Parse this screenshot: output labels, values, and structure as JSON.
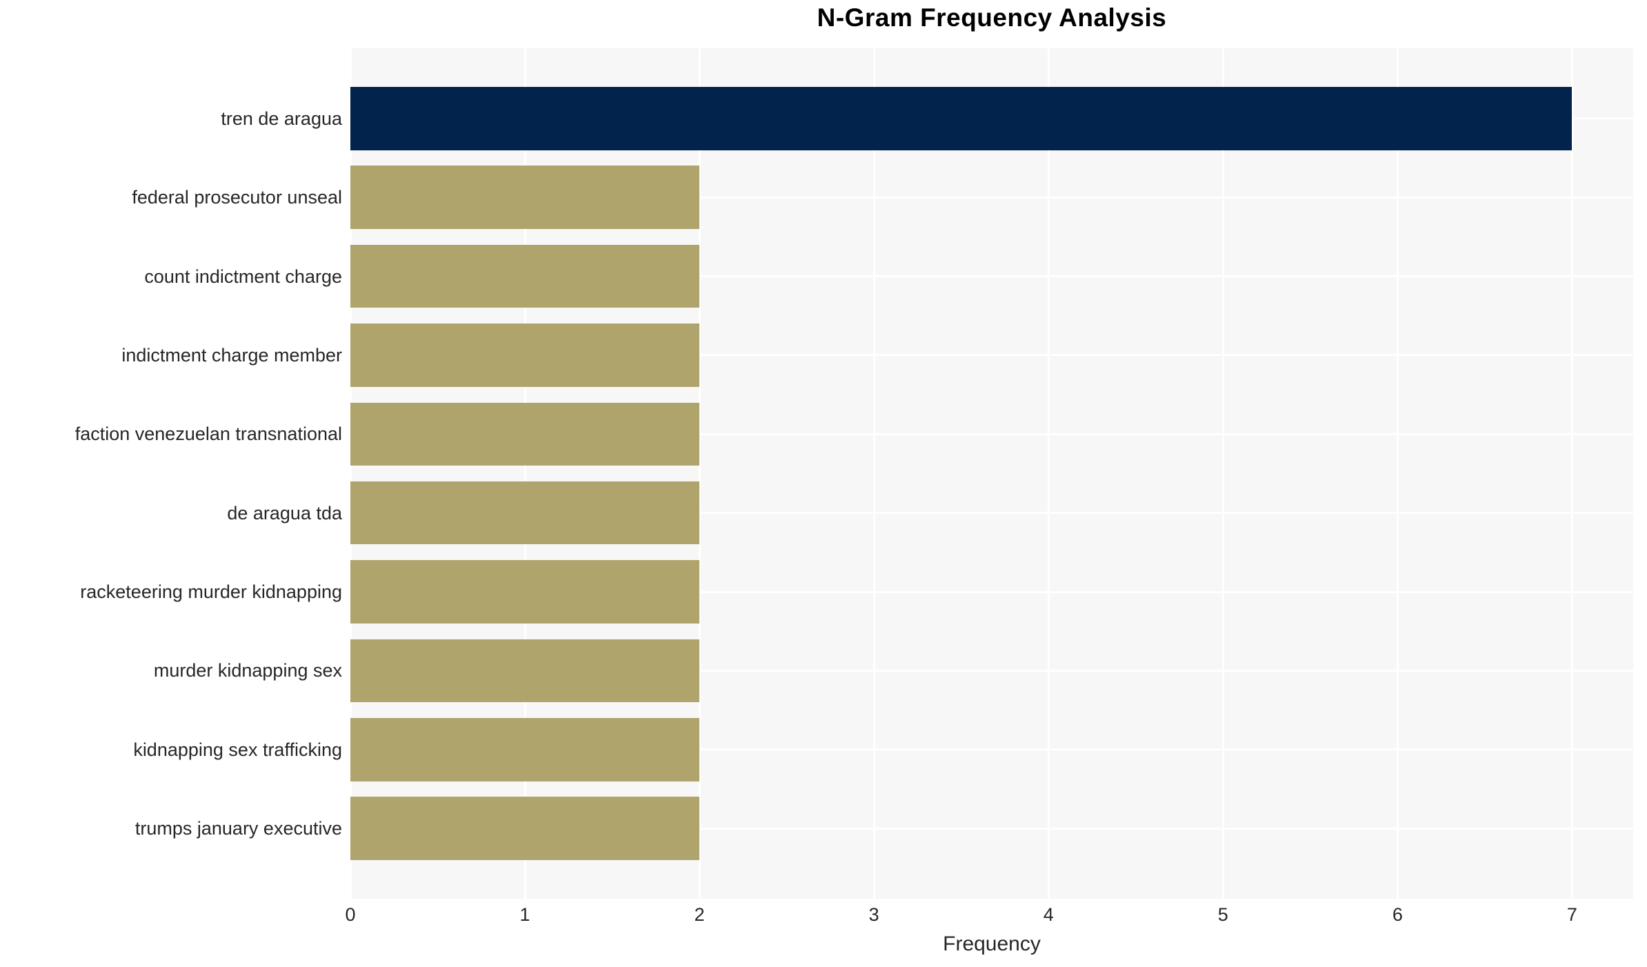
{
  "chart_data": {
    "type": "bar",
    "orientation": "horizontal",
    "title": "N-Gram Frequency Analysis",
    "xlabel": "Frequency",
    "ylabel": "",
    "categories": [
      "tren de aragua",
      "federal prosecutor unseal",
      "count indictment charge",
      "indictment charge member",
      "faction venezuelan transnational",
      "de aragua tda",
      "racketeering murder kidnapping",
      "murder kidnapping sex",
      "kidnapping sex trafficking",
      "trumps january executive"
    ],
    "values": [
      7,
      2,
      2,
      2,
      2,
      2,
      2,
      2,
      2,
      2
    ],
    "xticks": [
      0,
      1,
      2,
      3,
      4,
      5,
      6,
      7
    ],
    "xlim": [
      0,
      7.35
    ],
    "grid": true,
    "legend_position": "none",
    "colors": {
      "highlight_bar": "#02234B",
      "base_bar": "#AFA46B",
      "plot_background": "#F7F7F8",
      "gridline": "#FFFFFF",
      "text": "#262626",
      "title_text": "#000000"
    },
    "bar_colors": [
      "#02234B",
      "#AFA46B",
      "#AFA46B",
      "#AFA46B",
      "#AFA46B",
      "#AFA46B",
      "#AFA46B",
      "#AFA46B",
      "#AFA46B",
      "#AFA46B"
    ]
  }
}
